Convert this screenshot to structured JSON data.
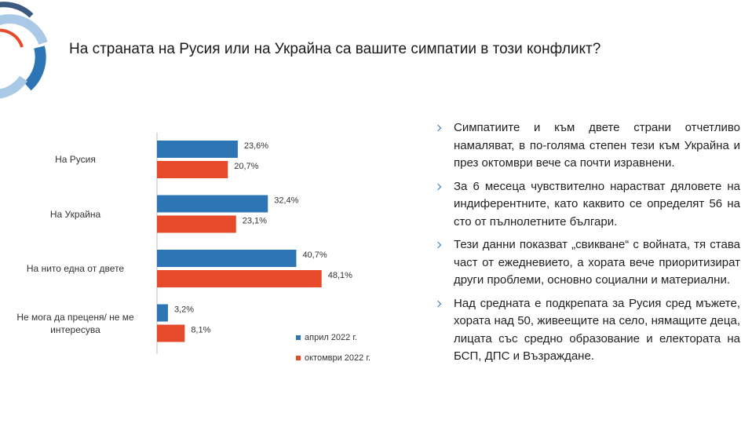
{
  "chart_data": {
    "type": "hbar",
    "title": "На страната на Русия или на Украйна са вашите симпатии в този конфликт?",
    "categories": [
      "На Русия",
      "На Украйна",
      "На нито една от двете",
      "Не мога да преценя/ не ме интересува"
    ],
    "series": [
      {
        "name": "април 2022 г.",
        "color": "#2e75b6",
        "values": [
          23.6,
          32.4,
          40.7,
          3.2
        ],
        "value_labels": [
          "23,6%",
          "32,4%",
          "40,7%",
          "3,2%"
        ]
      },
      {
        "name": "октомври 2022 г.",
        "color": "#e64a2a",
        "values": [
          20.7,
          23.1,
          48.1,
          8.1
        ],
        "value_labels": [
          "20,7%",
          "23,1%",
          "48,1%",
          "8,1%"
        ]
      }
    ],
    "legend": "bottom-right"
  },
  "bullets": [
    "Симпатиите и към двете страни отчетливо намаляват, в по-голяма степен тези към Украйна и през октомври вече са почти изравнени.",
    "За 6 месеца чувствително нарастват дяловете на индиферентните, като каквито се определят 56 на сто от пълнолетните българи.",
    "Тези данни показват „свикване“ с войната, тя става част от ежедневието, а хората вече приоритизират други проблеми, основно социални и материални.",
    "Над средната е подкрепата за Русия сред мъжете, хората над 50, живеещите на село, нямащите деца, лицата със средно образование и електората на БСП, ДПС и Възраждане."
  ]
}
